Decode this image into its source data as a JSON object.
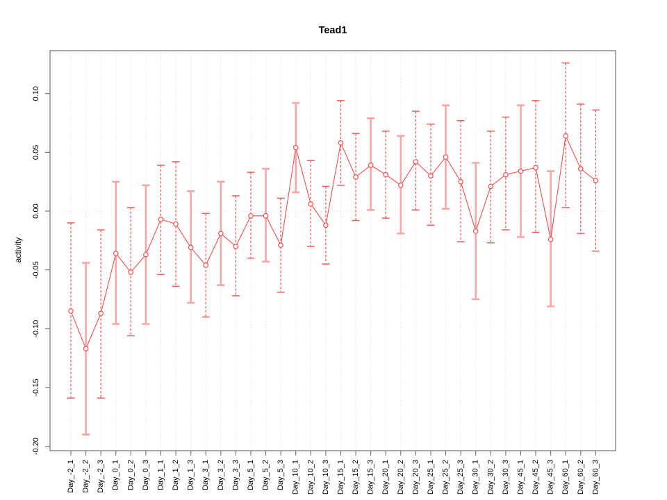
{
  "chart_data": {
    "type": "scatter",
    "title": "Tead1",
    "xlabel": "",
    "ylabel": "activity",
    "ylim": [
      -0.205,
      0.137
    ],
    "ytick_values": [
      0.1,
      0.05,
      0.0,
      -0.05,
      -0.1,
      -0.15,
      -0.2
    ],
    "ytick_labels": [
      "0.10",
      "0.05",
      "0.00",
      "-0.05",
      "-0.10",
      "-0.15",
      "-0.20"
    ],
    "grid_vertical_dotted": true,
    "zero_line_dotted": true,
    "legend": "none",
    "categories": [
      "Day_-2_1",
      "Day_-2_2",
      "Day_-2_3",
      "Day_0_1",
      "Day_0_2",
      "Day_0_3",
      "Day_1_1",
      "Day_1_2",
      "Day_1_3",
      "Day_3_1",
      "Day_3_2",
      "Day_3_3",
      "Day_5_1",
      "Day_5_2",
      "Day_5_3",
      "Day_10_1",
      "Day_10_2",
      "Day_10_3",
      "Day_15_1",
      "Day_15_2",
      "Day_15_3",
      "Day_20_1",
      "Day_20_2",
      "Day_20_3",
      "Day_25_1",
      "Day_25_2",
      "Day_25_3",
      "Day_30_1",
      "Day_30_2",
      "Day_30_3",
      "Day_45_1",
      "Day_45_2",
      "Day_45_3",
      "Day_60_1",
      "Day_60_2",
      "Day_60_3"
    ],
    "values": [
      -0.085,
      -0.117,
      -0.087,
      -0.036,
      -0.052,
      -0.037,
      -0.007,
      -0.011,
      -0.031,
      -0.046,
      -0.019,
      -0.03,
      -0.004,
      -0.004,
      -0.029,
      0.054,
      0.006,
      -0.012,
      0.058,
      0.029,
      0.039,
      0.031,
      0.022,
      0.042,
      0.03,
      0.046,
      0.025,
      -0.017,
      0.021,
      0.031,
      0.034,
      0.037,
      -0.024,
      0.064,
      0.036,
      0.026
    ],
    "error_upper": [
      -0.01,
      -0.044,
      -0.016,
      0.025,
      0.003,
      0.022,
      0.039,
      0.042,
      0.017,
      -0.002,
      0.025,
      0.013,
      0.033,
      0.036,
      0.011,
      0.092,
      0.043,
      0.021,
      0.094,
      0.066,
      0.079,
      0.068,
      0.064,
      0.085,
      0.074,
      0.09,
      0.077,
      0.041,
      0.068,
      0.08,
      0.09,
      0.094,
      0.034,
      0.126,
      0.091,
      0.086
    ],
    "error_lower": [
      -0.159,
      -0.19,
      -0.159,
      -0.096,
      -0.106,
      -0.096,
      -0.054,
      -0.064,
      -0.078,
      -0.09,
      -0.063,
      -0.072,
      -0.04,
      -0.043,
      -0.069,
      0.016,
      -0.03,
      -0.045,
      0.022,
      -0.008,
      0.001,
      -0.006,
      -0.019,
      0.001,
      -0.012,
      0.002,
      -0.026,
      -0.075,
      -0.027,
      -0.016,
      -0.022,
      -0.018,
      -0.081,
      0.003,
      -0.019,
      -0.034
    ],
    "bar_styles": [
      "dashed",
      "solid",
      "dashed",
      "solid",
      "dashed",
      "solid",
      "dashed",
      "dashed",
      "solid",
      "dashed",
      "solid",
      "dashed",
      "dashed",
      "solid",
      "dashed",
      "solid",
      "dashed",
      "dashed",
      "dashed",
      "dashed",
      "solid",
      "dashed",
      "solid",
      "dashed",
      "dashed",
      "solid",
      "dashed",
      "solid",
      "dashed",
      "dashed",
      "solid",
      "dashed",
      "solid",
      "dashed",
      "dashed",
      "dashed"
    ],
    "colors": {
      "series": "#f05050",
      "bar_strong": "#ec5f5f",
      "bar_light": "#f8a6a6",
      "grid": "#dcdcdc",
      "zero": "#dedede",
      "axis_box": "#6e6e6e",
      "text": "#000000"
    }
  }
}
